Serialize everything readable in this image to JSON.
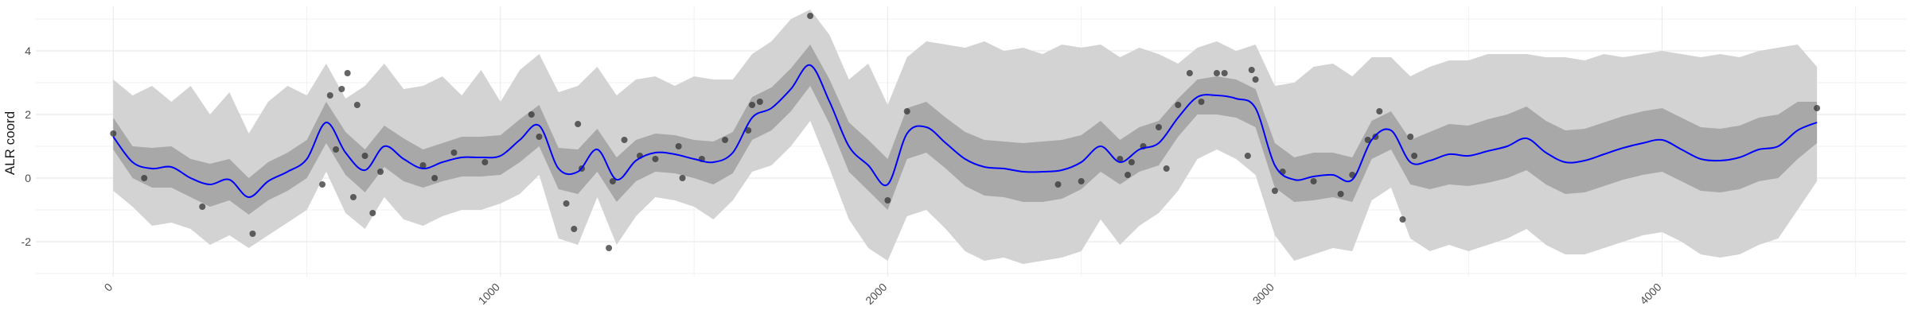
{
  "chart_data": {
    "type": "line",
    "title": "",
    "xlabel": "",
    "ylabel": "ALR coord",
    "xlim": [
      -200,
      4630
    ],
    "ylim": [
      -3.1,
      5.4
    ],
    "x_ticks": [
      0,
      1000,
      2000,
      3000,
      4000
    ],
    "x_tick_labels": [
      "0",
      "1000",
      "2000",
      "3000",
      "4000"
    ],
    "y_ticks": [
      -2,
      0,
      2,
      4
    ],
    "y_tick_labels": [
      "-2",
      "0",
      "2",
      "4"
    ],
    "grid": true,
    "legend": "none",
    "colors": {
      "mean_line": "#0000ff",
      "inner_band": "#a8a8a8",
      "outer_band": "#d3d3d3",
      "points": "#333333",
      "grid": "#ebebeb"
    },
    "series": [
      {
        "type": "line",
        "x": [
          0,
          50,
          100,
          150,
          200,
          250,
          300,
          350,
          400,
          450,
          500,
          550,
          600,
          650,
          700,
          750,
          800,
          850,
          900,
          950,
          1000,
          1050,
          1100,
          1150,
          1200,
          1250,
          1300,
          1350,
          1400,
          1450,
          1500,
          1550,
          1600,
          1650,
          1700,
          1750,
          1800,
          1850,
          1900,
          1950,
          2000,
          2050,
          2100,
          2150,
          2200,
          2250,
          2300,
          2350,
          2400,
          2450,
          2500,
          2550,
          2600,
          2650,
          2700,
          2750,
          2800,
          2850,
          2900,
          2950,
          3000,
          3050,
          3100,
          3150,
          3200,
          3250,
          3300,
          3350,
          3400,
          3450,
          3500,
          3550,
          3600,
          3650,
          3700,
          3750,
          3800,
          3850,
          3900,
          3950,
          4000,
          4050,
          4100,
          4150,
          4200,
          4250,
          4300,
          4350,
          4400
        ],
        "mean": [
          1.3,
          0.5,
          0.3,
          0.35,
          0.0,
          -0.2,
          -0.05,
          -0.6,
          -0.1,
          0.2,
          0.6,
          1.75,
          0.8,
          0.25,
          1.0,
          0.6,
          0.3,
          0.5,
          0.65,
          0.65,
          0.7,
          1.2,
          1.65,
          0.3,
          0.2,
          0.9,
          -0.05,
          0.55,
          0.8,
          0.75,
          0.6,
          0.5,
          0.8,
          1.9,
          2.2,
          2.8,
          3.55,
          2.4,
          1.0,
          0.4,
          -0.2,
          1.4,
          1.6,
          1.1,
          0.6,
          0.35,
          0.3,
          0.2,
          0.2,
          0.25,
          0.5,
          1.0,
          0.5,
          0.9,
          1.1,
          1.9,
          2.55,
          2.6,
          2.5,
          2.2,
          0.4,
          -0.05,
          0.05,
          0.1,
          -0.05,
          1.2,
          1.5,
          0.5,
          0.55,
          0.75,
          0.7,
          0.85,
          1.0,
          1.25,
          0.8,
          0.5,
          0.55,
          0.75,
          0.95,
          1.1,
          1.2,
          0.9,
          0.6,
          0.55,
          0.65,
          0.9,
          1.0,
          1.5,
          1.75
        ],
        "inner_low": [
          0.9,
          0.0,
          -0.3,
          -0.3,
          -0.6,
          -0.9,
          -0.7,
          -1.15,
          -0.7,
          -0.4,
          0.0,
          1.1,
          0.1,
          -0.45,
          0.35,
          -0.1,
          -0.3,
          -0.1,
          0.05,
          0.05,
          0.1,
          0.5,
          1.0,
          -0.35,
          -0.5,
          0.2,
          -0.75,
          -0.1,
          0.2,
          0.15,
          0.0,
          -0.2,
          0.15,
          1.2,
          1.5,
          2.1,
          2.9,
          1.7,
          0.2,
          -0.4,
          -1.0,
          0.6,
          0.8,
          0.3,
          -0.25,
          -0.55,
          -0.6,
          -0.75,
          -0.75,
          -0.65,
          -0.35,
          0.2,
          -0.2,
          0.2,
          0.4,
          1.3,
          2.0,
          2.0,
          1.9,
          1.6,
          -0.3,
          -0.75,
          -0.7,
          -0.6,
          -0.75,
          0.6,
          0.9,
          -0.2,
          -0.35,
          -0.2,
          -0.25,
          -0.15,
          0.0,
          0.25,
          -0.2,
          -0.5,
          -0.45,
          -0.25,
          -0.05,
          0.1,
          0.2,
          -0.1,
          -0.4,
          -0.45,
          -0.35,
          -0.1,
          0.0,
          0.6,
          1.1
        ],
        "inner_high": [
          1.9,
          1.0,
          0.95,
          1.0,
          0.6,
          0.45,
          0.6,
          0.0,
          0.5,
          0.8,
          1.2,
          2.4,
          1.45,
          0.9,
          1.65,
          1.25,
          0.9,
          1.1,
          1.3,
          1.3,
          1.35,
          1.85,
          2.3,
          0.95,
          0.9,
          1.55,
          0.65,
          1.2,
          1.4,
          1.35,
          1.2,
          1.15,
          1.45,
          2.55,
          2.85,
          3.45,
          4.2,
          3.1,
          1.75,
          1.2,
          0.6,
          2.2,
          2.4,
          1.9,
          1.45,
          1.2,
          1.15,
          1.1,
          1.15,
          1.2,
          1.35,
          1.8,
          1.2,
          1.6,
          1.8,
          2.5,
          3.1,
          3.2,
          3.1,
          2.8,
          1.1,
          0.65,
          0.8,
          0.8,
          0.65,
          1.8,
          2.1,
          1.2,
          1.45,
          1.7,
          1.65,
          1.85,
          2.0,
          2.25,
          1.8,
          1.5,
          1.55,
          1.75,
          1.95,
          2.1,
          2.2,
          1.9,
          1.6,
          1.55,
          1.65,
          1.9,
          2.0,
          2.4,
          2.4
        ],
        "outer_low": [
          -0.4,
          -0.9,
          -1.5,
          -1.4,
          -1.6,
          -2.1,
          -1.8,
          -2.2,
          -1.8,
          -1.4,
          -1.0,
          0.2,
          -1.1,
          -1.6,
          -0.6,
          -1.3,
          -1.5,
          -1.2,
          -1.0,
          -1.0,
          -0.8,
          -0.5,
          0.1,
          -1.9,
          -2.1,
          -0.6,
          -2.1,
          -1.2,
          -0.6,
          -0.7,
          -0.9,
          -1.3,
          -0.7,
          0.2,
          0.4,
          1.0,
          1.8,
          0.3,
          -1.3,
          -2.2,
          -2.6,
          -1.2,
          -1.0,
          -1.6,
          -2.3,
          -2.6,
          -2.5,
          -2.7,
          -2.6,
          -2.5,
          -2.3,
          -1.3,
          -2.1,
          -1.5,
          -1.1,
          -0.4,
          0.6,
          0.9,
          0.6,
          0.1,
          -1.8,
          -2.6,
          -2.4,
          -2.2,
          -2.3,
          -0.7,
          -0.3,
          -1.9,
          -2.3,
          -2.1,
          -2.3,
          -2.1,
          -1.9,
          -1.6,
          -2.1,
          -2.4,
          -2.4,
          -2.2,
          -2.0,
          -1.8,
          -1.7,
          -2.0,
          -2.4,
          -2.5,
          -2.4,
          -2.1,
          -1.9,
          -1.0,
          -0.1
        ],
        "outer_high": [
          3.1,
          2.6,
          2.9,
          2.4,
          2.9,
          2.0,
          2.7,
          1.4,
          2.4,
          2.9,
          2.6,
          3.6,
          2.5,
          2.9,
          3.6,
          2.8,
          2.9,
          3.2,
          2.6,
          3.4,
          2.4,
          3.4,
          3.9,
          2.7,
          2.9,
          3.5,
          2.6,
          3.1,
          3.2,
          2.9,
          3.2,
          3.1,
          3.1,
          3.9,
          4.3,
          5.0,
          5.3,
          4.5,
          3.1,
          3.6,
          2.3,
          3.8,
          4.3,
          4.2,
          4.1,
          4.3,
          4.0,
          4.1,
          3.9,
          4.2,
          4.1,
          4.2,
          3.8,
          4.1,
          3.9,
          3.6,
          4.1,
          4.3,
          4.0,
          4.2,
          2.9,
          3.0,
          3.5,
          3.6,
          3.2,
          3.8,
          3.8,
          3.2,
          3.5,
          3.7,
          3.7,
          3.9,
          3.9,
          3.9,
          3.8,
          3.8,
          3.7,
          3.9,
          3.8,
          3.9,
          4.0,
          3.9,
          3.8,
          3.9,
          3.8,
          4.0,
          4.1,
          4.2,
          3.5
        ]
      },
      {
        "type": "scatter",
        "x": [
          0,
          80,
          230,
          360,
          540,
          560,
          575,
          590,
          605,
          620,
          630,
          650,
          670,
          690,
          800,
          830,
          880,
          960,
          1080,
          1100,
          1170,
          1190,
          1200,
          1210,
          1280,
          1290,
          1320,
          1360,
          1400,
          1460,
          1470,
          1520,
          1580,
          1640,
          1650,
          1670,
          1800,
          2000,
          2050,
          2440,
          2500,
          2600,
          2620,
          2630,
          2660,
          2700,
          2720,
          2750,
          2780,
          2810,
          2850,
          2870,
          2930,
          2940,
          2950,
          3000,
          3020,
          3100,
          3170,
          3200,
          3240,
          3260,
          3270,
          3330,
          3350,
          3360,
          4400
        ],
        "y": [
          1.4,
          0.0,
          -0.9,
          -1.75,
          -0.2,
          2.6,
          0.9,
          2.8,
          3.3,
          -0.6,
          2.3,
          0.7,
          -1.1,
          0.2,
          0.4,
          0.0,
          0.8,
          0.5,
          2.0,
          1.3,
          -0.8,
          -1.6,
          1.7,
          0.3,
          -2.2,
          -0.1,
          1.2,
          0.7,
          0.6,
          1.0,
          0.0,
          0.6,
          1.2,
          1.5,
          2.3,
          2.4,
          5.1,
          -0.7,
          2.1,
          -0.2,
          -0.1,
          0.6,
          0.1,
          0.5,
          1.0,
          1.6,
          0.3,
          2.3,
          3.3,
          2.4,
          3.3,
          3.3,
          0.7,
          3.4,
          3.1,
          -0.4,
          0.2,
          -0.1,
          -0.5,
          0.1,
          1.2,
          1.3,
          2.1,
          -1.3,
          1.3,
          0.7,
          2.2
        ]
      }
    ]
  }
}
